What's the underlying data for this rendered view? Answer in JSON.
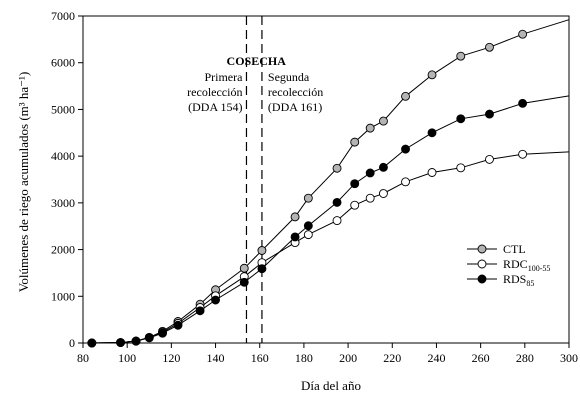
{
  "chart_data": {
    "type": "line",
    "xlabel": "Día del año",
    "ylabel": "Volúmenes de riego acumulados (m³ ha⁻¹)",
    "xlim": [
      80,
      300
    ],
    "ylim": [
      0,
      7000
    ],
    "xticks": [
      80,
      100,
      120,
      140,
      160,
      180,
      200,
      220,
      240,
      260,
      280,
      300
    ],
    "yticks": [
      0,
      1000,
      2000,
      3000,
      4000,
      5000,
      6000,
      7000
    ],
    "grid": false,
    "legend_position": "right",
    "annotations": {
      "harvest_title": "COSECHA",
      "first_harvest_lines": [
        "Primera",
        "recolección",
        "(DDA 154)"
      ],
      "first_harvest_day": 154,
      "second_harvest_lines": [
        "Segunda",
        "recolección",
        "(DDA 161)"
      ],
      "second_harvest_day": 161
    },
    "series": [
      {
        "name": "CTL",
        "legend_main": "CTL",
        "legend_sub": "",
        "marker_fill": "#b4b4b4",
        "points": [
          [
            84,
            0
          ],
          [
            97,
            10
          ],
          [
            104,
            40
          ],
          [
            110,
            120
          ],
          [
            116,
            250
          ],
          [
            123,
            460
          ],
          [
            133,
            830
          ],
          [
            140,
            1140
          ],
          [
            153,
            1600
          ],
          [
            161,
            1980
          ],
          [
            176,
            2700
          ],
          [
            182,
            3100
          ],
          [
            195,
            3740
          ],
          [
            203,
            4300
          ],
          [
            210,
            4600
          ],
          [
            216,
            4750
          ],
          [
            226,
            5280
          ],
          [
            238,
            5740
          ],
          [
            251,
            6140
          ],
          [
            264,
            6330
          ],
          [
            279,
            6610
          ],
          [
            300,
            6920
          ]
        ]
      },
      {
        "name": "RDC100-55",
        "legend_main": "RDC",
        "legend_sub": "100-55",
        "marker_fill": "#ffffff",
        "points": [
          [
            84,
            0
          ],
          [
            97,
            10
          ],
          [
            104,
            40
          ],
          [
            110,
            120
          ],
          [
            116,
            230
          ],
          [
            123,
            420
          ],
          [
            133,
            760
          ],
          [
            140,
            1010
          ],
          [
            153,
            1420
          ],
          [
            161,
            1720
          ],
          [
            176,
            2150
          ],
          [
            182,
            2320
          ],
          [
            195,
            2620
          ],
          [
            203,
            2950
          ],
          [
            210,
            3100
          ],
          [
            216,
            3200
          ],
          [
            226,
            3450
          ],
          [
            238,
            3650
          ],
          [
            251,
            3750
          ],
          [
            264,
            3930
          ],
          [
            279,
            4040
          ],
          [
            300,
            4090
          ]
        ]
      },
      {
        "name": "RDS85",
        "legend_main": "RDS",
        "legend_sub": "85",
        "marker_fill": "#000000",
        "points": [
          [
            84,
            0
          ],
          [
            97,
            10
          ],
          [
            104,
            40
          ],
          [
            110,
            110
          ],
          [
            116,
            210
          ],
          [
            123,
            380
          ],
          [
            133,
            690
          ],
          [
            140,
            920
          ],
          [
            153,
            1300
          ],
          [
            161,
            1590
          ],
          [
            176,
            2270
          ],
          [
            182,
            2510
          ],
          [
            195,
            3010
          ],
          [
            203,
            3410
          ],
          [
            210,
            3640
          ],
          [
            216,
            3760
          ],
          [
            226,
            4150
          ],
          [
            238,
            4500
          ],
          [
            251,
            4800
          ],
          [
            264,
            4900
          ],
          [
            279,
            5130
          ],
          [
            300,
            5290
          ]
        ]
      }
    ]
  }
}
